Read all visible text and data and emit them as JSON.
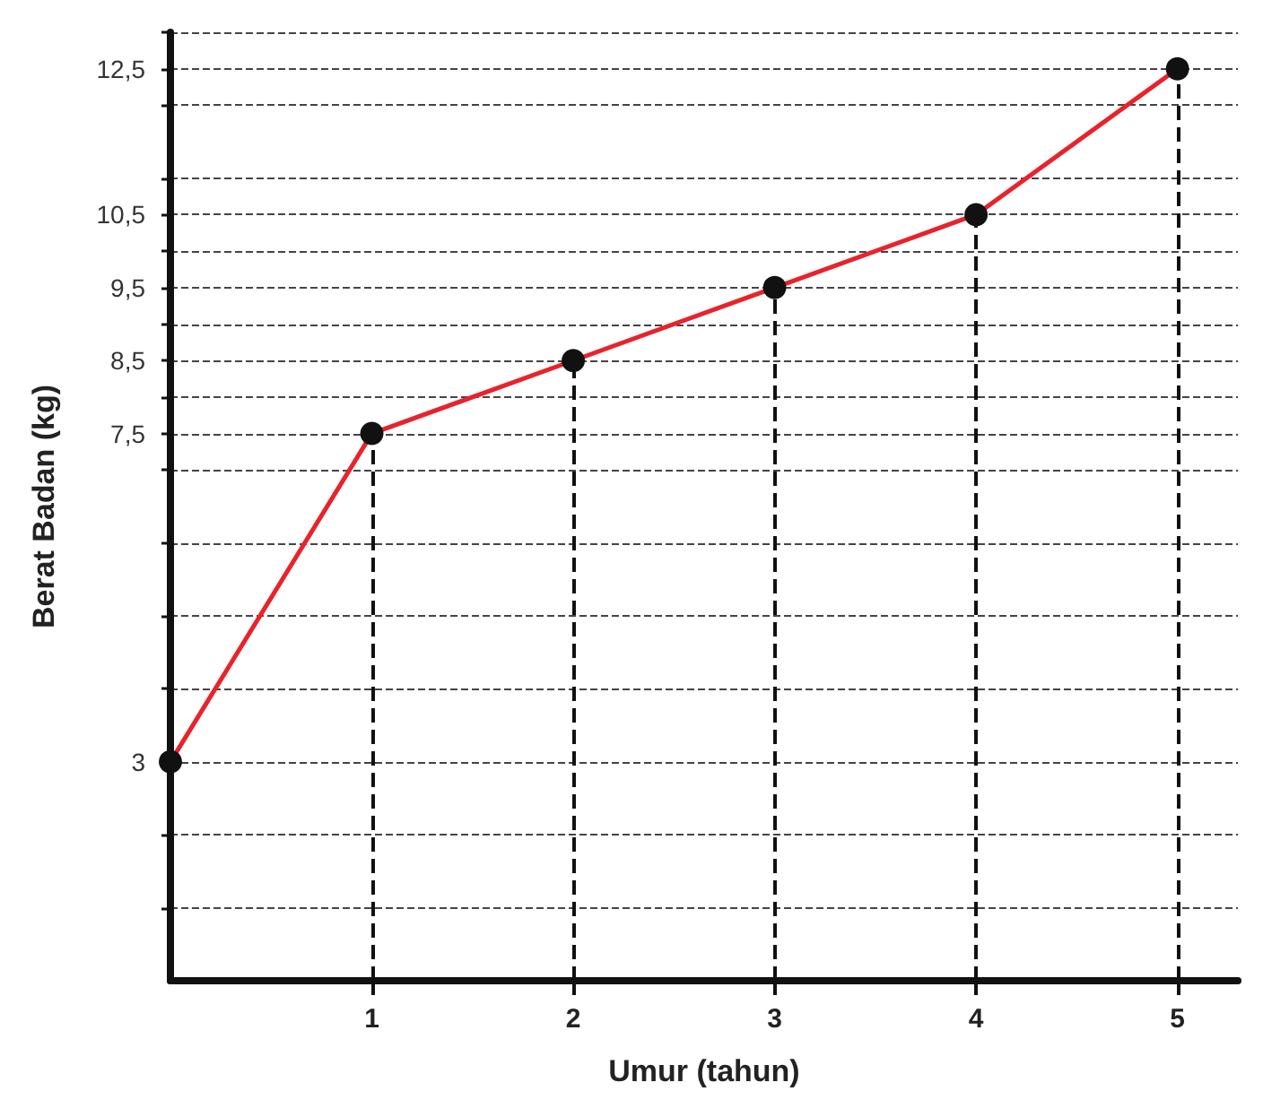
{
  "chart_data": {
    "type": "line",
    "xlabel": "Umur (tahun)",
    "ylabel": "Berat Badan (kg)",
    "x": [
      0,
      1,
      2,
      3,
      4,
      5
    ],
    "series": [
      {
        "color": "#e8232b",
        "values": [
          3,
          7.5,
          8.5,
          9.5,
          10.5,
          12.5
        ]
      }
    ],
    "xlim": [
      0,
      5.3
    ],
    "xticks": [
      1,
      2,
      3,
      4,
      5
    ],
    "ylim": [
      0,
      13
    ],
    "yticks": [
      {
        "value": 1,
        "label": null
      },
      {
        "value": 2,
        "label": null
      },
      3,
      {
        "value": 4,
        "label": null
      },
      {
        "value": 5,
        "label": null
      },
      {
        "value": 6,
        "label": null
      },
      {
        "value": 7,
        "label": null
      },
      {
        "value": 7.5,
        "label": "7,5"
      },
      {
        "value": 8,
        "label": null
      },
      {
        "value": 8.5,
        "label": "8,5"
      },
      {
        "value": 9,
        "label": null
      },
      {
        "value": 9.5,
        "label": "9,5"
      },
      {
        "value": 10,
        "label": null
      },
      {
        "value": 10.5,
        "label": "10,5"
      },
      {
        "value": 11,
        "label": null
      },
      {
        "value": 12,
        "label": null
      },
      {
        "value": 12.5,
        "label": "12,5"
      },
      {
        "value": 13,
        "label": null
      }
    ],
    "ref_lines": [
      {
        "axis": "x",
        "value": 1,
        "label": null,
        "color": "#111111",
        "line_style": "dashed"
      },
      {
        "axis": "x",
        "value": 2,
        "label": null,
        "color": "#111111",
        "line_style": "dashed"
      },
      {
        "axis": "x",
        "value": 3,
        "label": null,
        "color": "#111111",
        "line_style": "dashed"
      },
      {
        "axis": "x",
        "value": 4,
        "label": null,
        "color": "#111111",
        "line_style": "dashed"
      },
      {
        "axis": "x",
        "value": 5,
        "label": null,
        "color": "#111111",
        "line_style": "dashed"
      }
    ],
    "grid": "y",
    "marker": "circle",
    "line_style": "solid"
  }
}
